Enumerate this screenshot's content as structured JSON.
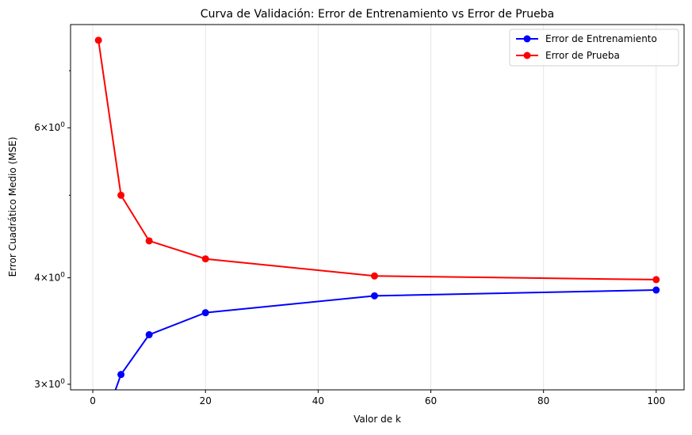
{
  "chart_data": {
    "type": "line",
    "title": "Curva de Validación: Error de Entrenamiento vs Error de Prueba",
    "xlabel": "Valor de k",
    "ylabel": "Error Cuadrático Medio (MSE)",
    "yscale": "log",
    "xlim": [
      -3.95,
      104.95
    ],
    "ylim": [
      2.955,
      7.93
    ],
    "grid": "x-only",
    "x": [
      1,
      5,
      10,
      20,
      50,
      100
    ],
    "xticks": [
      0,
      20,
      40,
      60,
      80,
      100
    ],
    "xtick_labels": [
      "0",
      "20",
      "40",
      "60",
      "80",
      "100"
    ],
    "yticks_major": [
      3,
      4,
      6
    ],
    "ytick_labels": [
      {
        "base": "3",
        "exp": "0"
      },
      {
        "base": "4",
        "exp": "0"
      },
      {
        "base": "6",
        "exp": "0"
      }
    ],
    "yticks_minor": [
      5,
      7
    ],
    "series": [
      {
        "name": "Error de Entrenamiento",
        "color": "#0000ff",
        "values": [
          0,
          3.08,
          3.43,
          3.64,
          3.81,
          3.87
        ]
      },
      {
        "name": "Error de Prueba",
        "color": "#ff0000",
        "values": [
          7.6,
          5.0,
          4.42,
          4.21,
          4.02,
          3.98
        ]
      }
    ],
    "legend": "top-right"
  }
}
